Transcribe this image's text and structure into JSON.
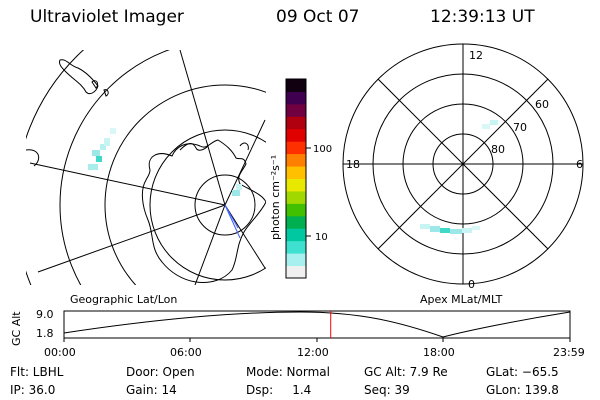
{
  "header": {
    "instrument": "Ultraviolet Imager",
    "date": "09 Oct 07",
    "time": "12:39:13 UT"
  },
  "geo_panel": {
    "label": "Geographic Lat/Lon"
  },
  "polar_panel": {
    "label": "Apex MLat/MLT",
    "mlt_labels": {
      "top": "12",
      "left": "18",
      "right": "6",
      "bottom": "0"
    },
    "lat_labels": [
      "60",
      "70",
      "80"
    ]
  },
  "colorbar": {
    "unit_label": "photon cm⁻²s⁻¹",
    "ticks": [
      "100",
      "10"
    ],
    "colors": [
      "#f0f0f0",
      "#a8f0f0",
      "#40e0d0",
      "#00c8a0",
      "#00b050",
      "#40c000",
      "#a0d800",
      "#e8e800",
      "#ffc000",
      "#ff8000",
      "#ff3000",
      "#e00000",
      "#b00010",
      "#700040",
      "#400050",
      "#100010"
    ]
  },
  "altitude_plot": {
    "ylabel": "GC Alt",
    "yticks": [
      "9.0",
      "1.8"
    ],
    "xticks": [
      "00:00",
      "06:00",
      "12:00",
      "18:00",
      "23:59"
    ],
    "current_time_hours": 12.65,
    "current_time_color": "#ff0000"
  },
  "info": {
    "filter": "Flt: LBHL",
    "ip": "IP: 36.0",
    "door": "Door: Open",
    "gain": "Gain: 14",
    "mode": "Mode: Normal",
    "dsp": "Dsp:     1.4",
    "gc_alt": "GC Alt: 7.9 Re",
    "seq": "Seq: 39",
    "glat": "GLat: −65.5",
    "glon": "GLon: 139.8"
  }
}
